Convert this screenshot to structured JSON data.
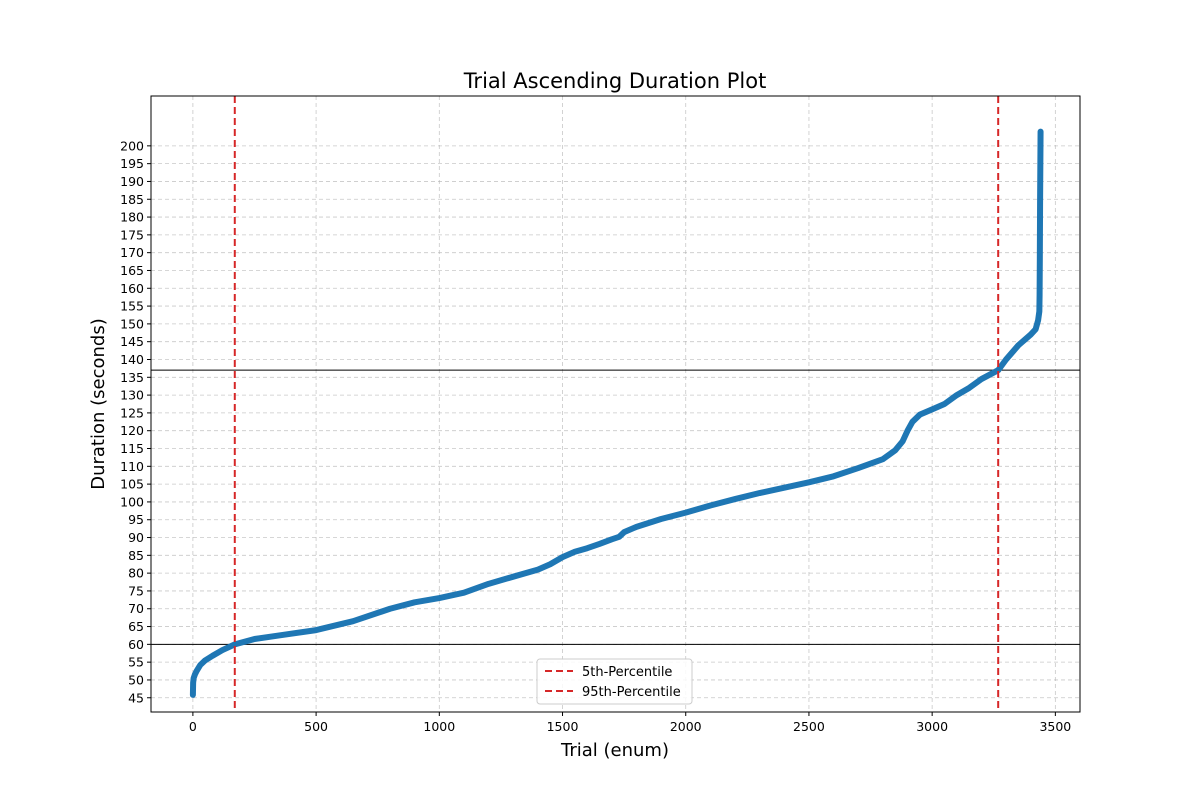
{
  "chart_data": {
    "type": "line",
    "title": "Trial Ascending Duration Plot",
    "xlabel": "Trial (enum)",
    "ylabel": "Duration (seconds)",
    "xlim": [
      -170,
      3600
    ],
    "ylim": [
      41,
      214
    ],
    "x_ticks": [
      0,
      500,
      1000,
      1500,
      2000,
      2500,
      3000,
      3500
    ],
    "y_ticks": [
      45,
      50,
      55,
      60,
      65,
      70,
      75,
      80,
      85,
      90,
      95,
      100,
      105,
      110,
      115,
      120,
      125,
      130,
      135,
      140,
      145,
      150,
      155,
      160,
      165,
      170,
      175,
      180,
      185,
      190,
      195,
      200
    ],
    "grid": true,
    "series": [
      {
        "color": "#1f77b4",
        "points": [
          [
            0,
            45.8
          ],
          [
            1,
            49.2
          ],
          [
            3,
            50.5
          ],
          [
            8,
            51.5
          ],
          [
            15,
            52.5
          ],
          [
            30,
            54.2
          ],
          [
            50,
            55.5
          ],
          [
            80,
            56.8
          ],
          [
            120,
            58.4
          ],
          [
            170,
            60.0
          ],
          [
            250,
            61.5
          ],
          [
            350,
            62.5
          ],
          [
            500,
            64.0
          ],
          [
            650,
            66.5
          ],
          [
            800,
            70.0
          ],
          [
            900,
            71.8
          ],
          [
            1000,
            73.0
          ],
          [
            1100,
            74.5
          ],
          [
            1200,
            77.0
          ],
          [
            1300,
            79.0
          ],
          [
            1400,
            81.0
          ],
          [
            1450,
            82.5
          ],
          [
            1500,
            84.5
          ],
          [
            1550,
            86.0
          ],
          [
            1600,
            87.0
          ],
          [
            1650,
            88.2
          ],
          [
            1700,
            89.5
          ],
          [
            1730,
            90.2
          ],
          [
            1750,
            91.5
          ],
          [
            1800,
            93.0
          ],
          [
            1900,
            95.2
          ],
          [
            2000,
            97.0
          ],
          [
            2100,
            99.0
          ],
          [
            2200,
            100.8
          ],
          [
            2300,
            102.5
          ],
          [
            2400,
            104.0
          ],
          [
            2500,
            105.5
          ],
          [
            2600,
            107.2
          ],
          [
            2700,
            109.5
          ],
          [
            2800,
            112.0
          ],
          [
            2850,
            114.5
          ],
          [
            2880,
            117.0
          ],
          [
            2900,
            120.0
          ],
          [
            2920,
            122.5
          ],
          [
            2950,
            124.5
          ],
          [
            3000,
            126.0
          ],
          [
            3050,
            127.5
          ],
          [
            3100,
            130.0
          ],
          [
            3150,
            132.0
          ],
          [
            3200,
            134.5
          ],
          [
            3268,
            137.0
          ],
          [
            3300,
            140.0
          ],
          [
            3350,
            144.0
          ],
          [
            3400,
            147.0
          ],
          [
            3420,
            148.5
          ],
          [
            3430,
            151.0
          ],
          [
            3435,
            153.5
          ],
          [
            3436,
            158.0
          ],
          [
            3437,
            168.5
          ],
          [
            3438,
            184.0
          ],
          [
            3440,
            204.0
          ]
        ]
      }
    ],
    "percentile_lines": [
      {
        "name": "5th-Percentile",
        "x": 170,
        "color": "#d62728"
      },
      {
        "name": "95th-Percentile",
        "x": 3268,
        "color": "#d62728"
      }
    ],
    "reference_lines": [
      {
        "y": 60,
        "color": "#000000"
      },
      {
        "y": 137,
        "color": "#000000"
      }
    ],
    "legend": {
      "placement": "bottom-center",
      "entries": [
        "5th-Percentile",
        "95th-Percentile"
      ]
    }
  }
}
